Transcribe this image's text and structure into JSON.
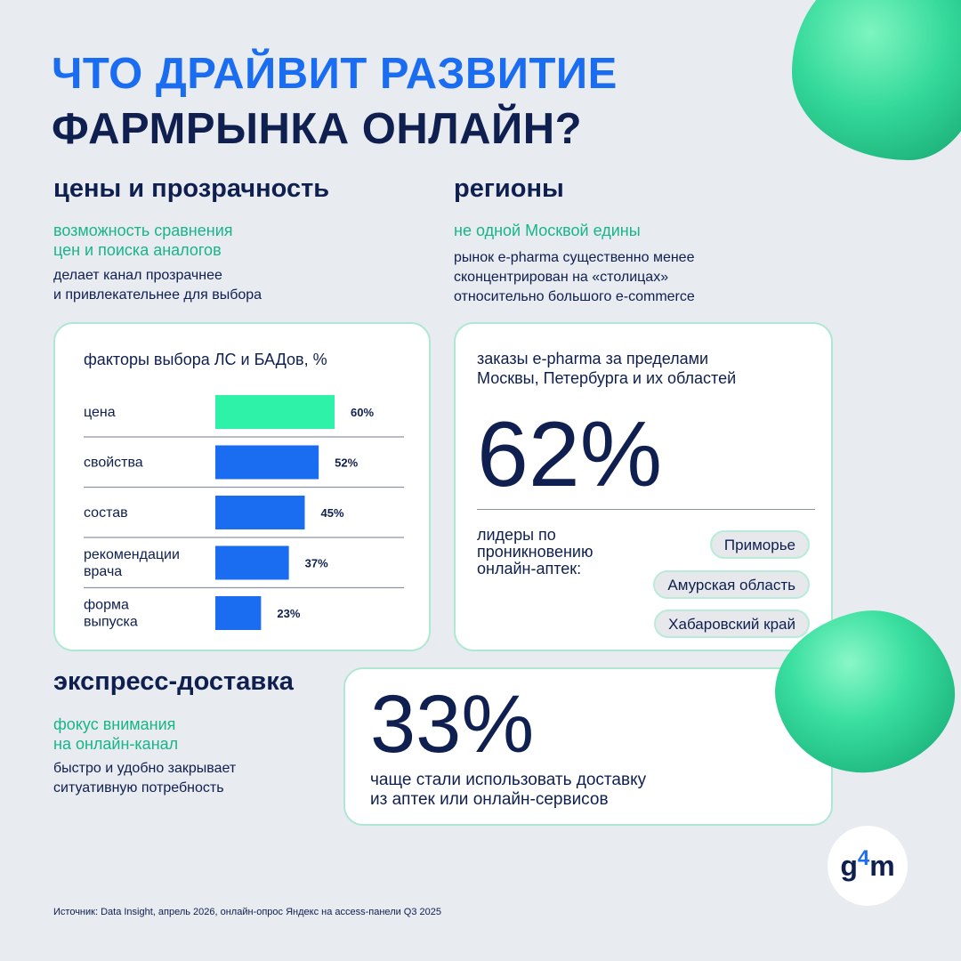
{
  "title": {
    "line1": "ЧТО ДРАЙВИТ РАЗВИТИЕ",
    "line2": "ФАРМРЫНКА ОНЛАЙН?"
  },
  "prices": {
    "heading": "цены и прозрачность",
    "teal_line1": "возможность сравнения",
    "teal_line2": "цен и поиска аналогов",
    "text_line1": "делает канал прозрачнее",
    "text_line2": "и привлекательнее для выбора"
  },
  "regions": {
    "heading": "регионы",
    "teal": "не одной Москвой едины",
    "text_line1": "рынок e-pharma  существенно менее",
    "text_line2": "сконцентрирован на «столицах»",
    "text_line3": "относительно большого e-commerce",
    "card_line1": "заказы e-pharma за пределами",
    "card_line2": "Москвы, Петербурга и их областей",
    "big": "62%",
    "leaders_line1": "лидеры по",
    "leaders_line2": "проникновению",
    "leaders_line3": "онлайн-аптек:",
    "pills": [
      "Приморье",
      "Амурская область",
      "Хабаровский край"
    ]
  },
  "express": {
    "heading": "экспресс-доставка",
    "teal_line1": "фокус внимания",
    "teal_line2": "на онлайн-канал",
    "text_line1": "быстро и удобно закрывает",
    "text_line2": "ситуативную потребность",
    "big": "33%",
    "card_line1": "чаще стали использовать доставку",
    "card_line2": "из аптек или онлайн-сервисов"
  },
  "chart_data": {
    "type": "bar",
    "title": "факторы выбора ЛС и БАДов, %",
    "categories": [
      [
        "цена"
      ],
      [
        "свойства"
      ],
      [
        "состав"
      ],
      [
        "рекомендации",
        "врача"
      ],
      [
        "форма",
        "выпуска"
      ]
    ],
    "values": [
      60,
      52,
      45,
      37,
      23
    ],
    "value_labels": [
      "60%",
      "52%",
      "45%",
      "37%",
      "23%"
    ],
    "colors": [
      "#2ef2a7",
      "#1a6df0",
      "#1a6df0",
      "#1a6df0",
      "#1a6df0"
    ],
    "orientation": "horizontal",
    "xlim": [
      0,
      60
    ]
  },
  "logo": {
    "g": "g",
    "four": "4",
    "m": "m"
  },
  "source": "Источник: Data Insight, апрель 2026, онлайн-опрос Яндекс на access-панели Q3 2025",
  "colors": {
    "accent_blue": "#1a6df0",
    "accent_green": "#2ef2a7",
    "teal_text": "#18b58a",
    "navy": "#0f1f4f"
  }
}
